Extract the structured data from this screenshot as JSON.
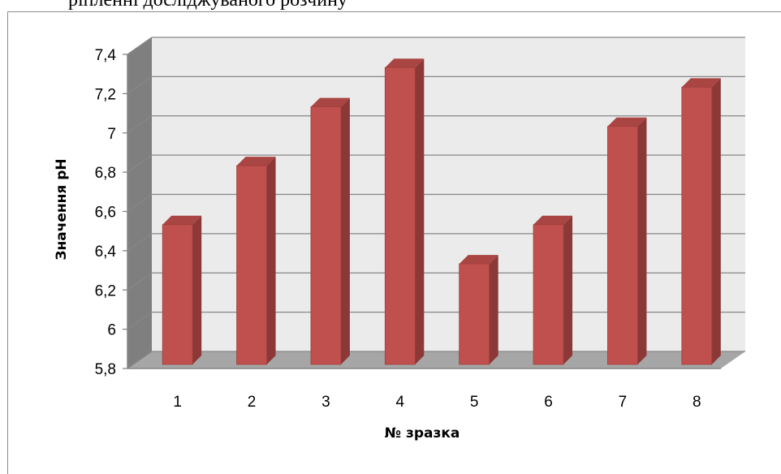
{
  "header_text": "ріпленні досліджуваного розчину",
  "chart_data": {
    "type": "bar",
    "categories": [
      "1",
      "2",
      "3",
      "4",
      "5",
      "6",
      "7",
      "8"
    ],
    "values": [
      6.5,
      6.8,
      7.1,
      7.3,
      6.3,
      6.5,
      7.0,
      7.2
    ],
    "xlabel": "№ зразка",
    "ylabel": "Значення pH",
    "ylim": [
      5.8,
      7.4
    ],
    "yticks": [
      "5,8",
      "6",
      "6,2",
      "6,4",
      "6,6",
      "6,8",
      "7",
      "7,2",
      "7,4"
    ],
    "grid": true,
    "style": "3d-column",
    "colors": {
      "bar_front": "#c0504d",
      "bar_side": "#8c3836",
      "bar_top": "#a94542",
      "back_wall": "#ebebeb",
      "side_wall": "#7f7f7f",
      "floor": "#a6a6a6"
    }
  }
}
